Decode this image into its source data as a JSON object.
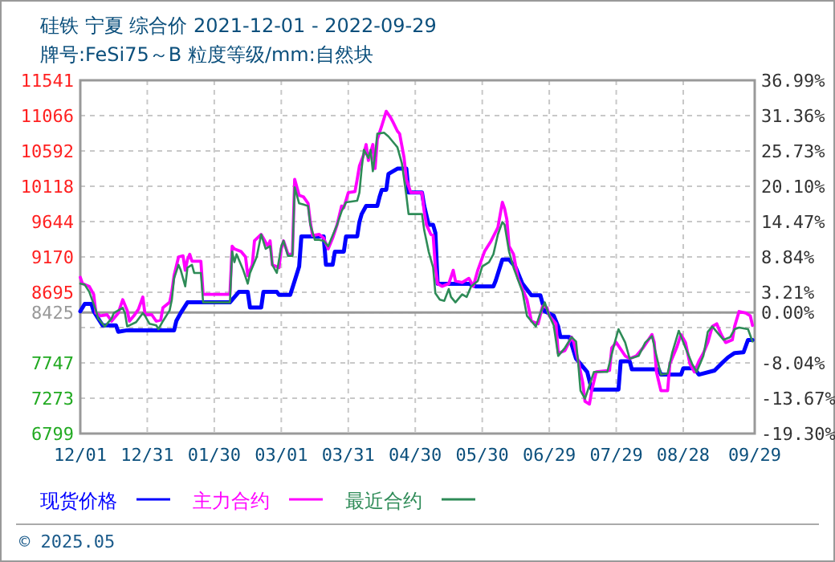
{
  "chart_data": {
    "type": "line",
    "title": "硅铁 宁夏 综合价 2021-12-01 - 2022-09-29",
    "subtitle": "牌号:FeSi75～B 粒度等级/mm:自然块",
    "xlim": [
      "2021-12-01",
      "2022-09-29"
    ],
    "xticks": [
      {
        "value": "2021-12-01",
        "label": "12/01"
      },
      {
        "value": "2021-12-31",
        "label": "12/31"
      },
      {
        "value": "2022-01-30",
        "label": "01/30"
      },
      {
        "value": "2022-03-01",
        "label": "03/01"
      },
      {
        "value": "2022-03-31",
        "label": "03/31"
      },
      {
        "value": "2022-04-30",
        "label": "04/30"
      },
      {
        "value": "2022-05-30",
        "label": "05/30"
      },
      {
        "value": "2022-06-29",
        "label": "06/29"
      },
      {
        "value": "2022-07-29",
        "label": "07/29"
      },
      {
        "value": "2022-08-28",
        "label": "08/28"
      },
      {
        "value": "2022-09-29",
        "label": "09/29"
      }
    ],
    "ylim": [
      6799,
      11541
    ],
    "yticks": [
      6799,
      7273,
      7747,
      {
        "value": 8221,
        "label": null
      },
      8695,
      9170,
      9644,
      10118,
      10592,
      11066,
      11541
    ],
    "y2lim": [
      -19.3,
      36.99
    ],
    "y2ticks": [
      {
        "value": -19.3,
        "label": "-19.30%"
      },
      {
        "value": -13.67,
        "label": "-13.67%"
      },
      {
        "value": -8.04,
        "label": "-8.04%"
      },
      {
        "value": -2.42,
        "label": null
      },
      {
        "value": 0,
        "label": "0.00%"
      },
      {
        "value": 3.21,
        "label": "3.21%"
      },
      {
        "value": 8.84,
        "label": "8.84%"
      },
      {
        "value": 14.47,
        "label": "14.47%"
      },
      {
        "value": 20.1,
        "label": "20.10%"
      },
      {
        "value": 25.73,
        "label": "25.73%"
      },
      {
        "value": 31.36,
        "label": "31.36%"
      },
      {
        "value": 36.99,
        "label": "36.99%"
      }
    ],
    "ref_lines": [
      {
        "axis": "y",
        "value": 8425,
        "label": "8425",
        "color": "#999999"
      }
    ],
    "grid": true,
    "legend": "bottom",
    "line_style": "solid",
    "marker": "none",
    "annotations": [
      "© 2025.05"
    ],
    "series": [
      {
        "name": "现货价格",
        "color": "#0000ff",
        "x": [
          "2021-12-01",
          "2021-12-03",
          "2021-12-06",
          "2021-12-07",
          "2021-12-09",
          "2021-12-11",
          "2021-12-17",
          "2021-12-18",
          "2021-12-22",
          "2022-01-12",
          "2022-01-13",
          "2022-01-15",
          "2022-01-18",
          "2022-02-06",
          "2022-02-08",
          "2022-02-10",
          "2022-02-14",
          "2022-02-15",
          "2022-02-20",
          "2022-02-21",
          "2022-02-27",
          "2022-02-28",
          "2022-03-05",
          "2022-03-07",
          "2022-03-09",
          "2022-03-10",
          "2022-03-20",
          "2022-03-21",
          "2022-03-24",
          "2022-03-25",
          "2022-03-29",
          "2022-03-30",
          "2022-04-04",
          "2022-04-05",
          "2022-04-06",
          "2022-04-08",
          "2022-04-13",
          "2022-04-14",
          "2022-04-15",
          "2022-04-17",
          "2022-04-18",
          "2022-04-22",
          "2022-04-26",
          "2022-04-27",
          "2022-05-03",
          "2022-05-04",
          "2022-05-06",
          "2022-05-08",
          "2022-05-09",
          "2022-05-10",
          "2022-05-24",
          "2022-05-27",
          "2022-06-04",
          "2022-06-05",
          "2022-06-08",
          "2022-06-11",
          "2022-06-14",
          "2022-06-17",
          "2022-06-21",
          "2022-06-25",
          "2022-06-27",
          "2022-07-01",
          "2022-07-03",
          "2022-07-04",
          "2022-07-08",
          "2022-07-11",
          "2022-07-16",
          "2022-07-18",
          "2022-07-30",
          "2022-07-31",
          "2022-08-04",
          "2022-08-05",
          "2022-08-17",
          "2022-08-18",
          "2022-08-27",
          "2022-08-28",
          "2022-09-02",
          "2022-09-04",
          "2022-09-11",
          "2022-09-14",
          "2022-09-17",
          "2022-09-20",
          "2022-09-24",
          "2022-09-26",
          "2022-09-28"
        ],
        "values": [
          8440,
          8540,
          8540,
          8440,
          8345,
          8250,
          8250,
          8165,
          8185,
          8185,
          8310,
          8420,
          8560,
          8560,
          8630,
          8700,
          8700,
          8490,
          8490,
          8700,
          8700,
          8660,
          8660,
          8850,
          9040,
          9445,
          9445,
          9065,
          9065,
          9240,
          9240,
          9445,
          9445,
          9640,
          9745,
          9855,
          9855,
          9975,
          10070,
          10070,
          10285,
          10355,
          10355,
          10035,
          10035,
          9855,
          9600,
          9600,
          9495,
          8810,
          8810,
          8775,
          8775,
          8850,
          9135,
          9135,
          9027,
          8810,
          8655,
          8655,
          8440,
          8380,
          8235,
          8095,
          8095,
          7805,
          7625,
          7390,
          7390,
          7770,
          7770,
          7660,
          7660,
          7590,
          7590,
          7675,
          7675,
          7590,
          7645,
          7735,
          7820,
          7880,
          7890,
          8055,
          8055
        ]
      },
      {
        "name": "主力合约",
        "color": "#ff00ff",
        "x": [
          "2021-12-01",
          "2021-12-02",
          "2021-12-05",
          "2021-12-07",
          "2021-12-08",
          "2021-12-10",
          "2021-12-13",
          "2021-12-15",
          "2021-12-18",
          "2021-12-20",
          "2021-12-22",
          "2021-12-23",
          "2021-12-25",
          "2021-12-27",
          "2021-12-29",
          "2021-12-30",
          "2022-01-02",
          "2022-01-04",
          "2022-01-06",
          "2022-01-07",
          "2022-01-10",
          "2022-01-11",
          "2022-01-12",
          "2022-01-14",
          "2022-01-16",
          "2022-01-17",
          "2022-01-18",
          "2022-01-19",
          "2022-01-20",
          "2022-01-24",
          "2022-01-25",
          "2022-02-06",
          "2022-02-07",
          "2022-02-08",
          "2022-02-11",
          "2022-02-13",
          "2022-02-14",
          "2022-02-16",
          "2022-02-17",
          "2022-02-20",
          "2022-02-23",
          "2022-02-24",
          "2022-02-25",
          "2022-02-28",
          "2022-03-01",
          "2022-03-02",
          "2022-03-04",
          "2022-03-06",
          "2022-03-07",
          "2022-03-09",
          "2022-03-11",
          "2022-03-13",
          "2022-03-14",
          "2022-03-15",
          "2022-03-18",
          "2022-03-20",
          "2022-03-22",
          "2022-03-24",
          "2022-03-26",
          "2022-03-28",
          "2022-03-29",
          "2022-03-31",
          "2022-04-03",
          "2022-04-04",
          "2022-04-05",
          "2022-04-07",
          "2022-04-08",
          "2022-04-09",
          "2022-04-11",
          "2022-04-12",
          "2022-04-13",
          "2022-04-15",
          "2022-04-17",
          "2022-04-19",
          "2022-04-20",
          "2022-04-22",
          "2022-04-23",
          "2022-04-25",
          "2022-04-26",
          "2022-04-28",
          "2022-05-03",
          "2022-05-04",
          "2022-05-05",
          "2022-05-07",
          "2022-05-08",
          "2022-05-09",
          "2022-05-10",
          "2022-05-12",
          "2022-05-15",
          "2022-05-17",
          "2022-05-18",
          "2022-05-21",
          "2022-05-24",
          "2022-05-26",
          "2022-05-28",
          "2022-05-31",
          "2022-06-03",
          "2022-06-06",
          "2022-06-08",
          "2022-06-09",
          "2022-06-10",
          "2022-06-11",
          "2022-06-13",
          "2022-06-15",
          "2022-06-17",
          "2022-06-19",
          "2022-06-21",
          "2022-06-24",
          "2022-06-26",
          "2022-06-28",
          "2022-06-29",
          "2022-07-02",
          "2022-07-03",
          "2022-07-06",
          "2022-07-09",
          "2022-07-10",
          "2022-07-12",
          "2022-07-14",
          "2022-07-15",
          "2022-07-17",
          "2022-07-18",
          "2022-07-20",
          "2022-07-26",
          "2022-07-27",
          "2022-07-29",
          "2022-08-02",
          "2022-08-04",
          "2022-08-07",
          "2022-08-10",
          "2022-08-14",
          "2022-08-15",
          "2022-08-16",
          "2022-08-18",
          "2022-08-21",
          "2022-08-22",
          "2022-08-25",
          "2022-08-27",
          "2022-08-29",
          "2022-08-31",
          "2022-09-02",
          "2022-09-04",
          "2022-09-06",
          "2022-09-08",
          "2022-09-10",
          "2022-09-12",
          "2022-09-14",
          "2022-09-16",
          "2022-09-19",
          "2022-09-20",
          "2022-09-22",
          "2022-09-25",
          "2022-09-27",
          "2022-09-28"
        ],
        "values": [
          8897,
          8811,
          8775,
          8667,
          8416,
          8380,
          8394,
          8308,
          8416,
          8596,
          8452,
          8308,
          8380,
          8466,
          8632,
          8394,
          8394,
          8308,
          8323,
          8488,
          8560,
          8703,
          8919,
          9170,
          9185,
          8991,
          9135,
          9206,
          9113,
          9113,
          8667,
          8667,
          9314,
          9278,
          9242,
          9170,
          8919,
          9063,
          9386,
          9472,
          9314,
          9386,
          9063,
          9027,
          9278,
          9386,
          9206,
          9206,
          10212,
          9997,
          9975,
          9889,
          9637,
          9458,
          9472,
          9422,
          9278,
          9422,
          9602,
          9853,
          9831,
          10033,
          10047,
          10212,
          10392,
          10550,
          10679,
          10464,
          10679,
          10356,
          10751,
          10931,
          11125,
          11039,
          10981,
          10859,
          10823,
          10500,
          10212,
          10033,
          10033,
          9781,
          9602,
          9472,
          9458,
          9027,
          8811,
          8775,
          8811,
          8991,
          8847,
          8826,
          8883,
          8775,
          8991,
          9242,
          9386,
          9566,
          9903,
          9817,
          9674,
          9314,
          9206,
          8883,
          8739,
          8596,
          8308,
          8272,
          8509,
          8488,
          8380,
          8272,
          7877,
          7913,
          8093,
          8021,
          7769,
          7482,
          7231,
          7195,
          7374,
          7626,
          7647,
          7949,
          8021,
          7841,
          7805,
          7841,
          7949,
          8128,
          8021,
          7626,
          7374,
          7374,
          7733,
          7949,
          8128,
          8021,
          7733,
          7626,
          7769,
          7877,
          8021,
          8236,
          8272,
          8128,
          8021,
          8057,
          8236,
          8437,
          8416,
          8380,
          8251
        ]
      },
      {
        "name": "最近合约",
        "color": "#2e8b57",
        "x": [
          "2021-12-01",
          "2021-12-03",
          "2021-12-05",
          "2021-12-08",
          "2021-12-09",
          "2021-12-12",
          "2021-12-15",
          "2021-12-16",
          "2021-12-20",
          "2021-12-21",
          "2021-12-22",
          "2021-12-26",
          "2021-12-29",
          "2021-12-30",
          "2022-01-01",
          "2022-01-04",
          "2022-01-05",
          "2022-01-07",
          "2022-01-10",
          "2022-01-11",
          "2022-01-12",
          "2022-01-14",
          "2022-01-15",
          "2022-01-17",
          "2022-01-18",
          "2022-01-20",
          "2022-01-21",
          "2022-01-24",
          "2022-01-25",
          "2022-02-06",
          "2022-02-07",
          "2022-02-08",
          "2022-02-09",
          "2022-02-12",
          "2022-02-14",
          "2022-02-15",
          "2022-02-18",
          "2022-02-20",
          "2022-02-22",
          "2022-02-24",
          "2022-02-25",
          "2022-02-27",
          "2022-03-01",
          "2022-03-02",
          "2022-03-04",
          "2022-03-06",
          "2022-03-07",
          "2022-03-09",
          "2022-03-11",
          "2022-03-13",
          "2022-03-14",
          "2022-03-16",
          "2022-03-18",
          "2022-03-20",
          "2022-03-22",
          "2022-03-24",
          "2022-03-26",
          "2022-03-28",
          "2022-03-30",
          "2022-04-04",
          "2022-04-05",
          "2022-04-06",
          "2022-04-07",
          "2022-04-09",
          "2022-04-10",
          "2022-04-11",
          "2022-04-12",
          "2022-04-13",
          "2022-04-16",
          "2022-04-18",
          "2022-04-21",
          "2022-04-22",
          "2022-04-24",
          "2022-04-26",
          "2022-04-27",
          "2022-05-03",
          "2022-05-04",
          "2022-05-06",
          "2022-05-08",
          "2022-05-09",
          "2022-05-11",
          "2022-05-13",
          "2022-05-15",
          "2022-05-16",
          "2022-05-18",
          "2022-05-21",
          "2022-05-23",
          "2022-05-25",
          "2022-05-28",
          "2022-05-30",
          "2022-06-02",
          "2022-06-04",
          "2022-06-06",
          "2022-06-08",
          "2022-06-09",
          "2022-06-11",
          "2022-06-13",
          "2022-06-17",
          "2022-06-19",
          "2022-06-21",
          "2022-06-23",
          "2022-06-25",
          "2022-06-27",
          "2022-06-29",
          "2022-07-01",
          "2022-07-03",
          "2022-07-06",
          "2022-07-09",
          "2022-07-11",
          "2022-07-12",
          "2022-07-13",
          "2022-07-15",
          "2022-07-17",
          "2022-07-19",
          "2022-07-25",
          "2022-07-28",
          "2022-07-30",
          "2022-08-02",
          "2022-08-04",
          "2022-08-08",
          "2022-08-11",
          "2022-08-14",
          "2022-08-16",
          "2022-08-18",
          "2022-08-21",
          "2022-08-23",
          "2022-08-26",
          "2022-08-29",
          "2022-09-01",
          "2022-09-03",
          "2022-09-06",
          "2022-09-08",
          "2022-09-10",
          "2022-09-13",
          "2022-09-15",
          "2022-09-18",
          "2022-09-20",
          "2022-09-22",
          "2022-09-26",
          "2022-09-28"
        ],
        "values": [
          8811,
          8797,
          8703,
          8452,
          8344,
          8236,
          8344,
          8416,
          8488,
          8416,
          8236,
          8294,
          8416,
          8380,
          8272,
          8251,
          8200,
          8308,
          8452,
          8596,
          8883,
          9063,
          8991,
          8775,
          9027,
          9063,
          8955,
          8955,
          8560,
          8560,
          9242,
          9099,
          9206,
          8991,
          8811,
          8955,
          9170,
          9472,
          9278,
          9314,
          9063,
          8955,
          9314,
          9386,
          9185,
          9185,
          10104,
          9889,
          9874,
          9853,
          9602,
          9400,
          9400,
          9386,
          9314,
          9458,
          9602,
          9781,
          9903,
          9925,
          10033,
          10356,
          10608,
          10500,
          10608,
          10320,
          10536,
          10823,
          10837,
          10787,
          10679,
          10643,
          10428,
          9997,
          9745,
          9745,
          9530,
          9242,
          9027,
          8682,
          8596,
          8581,
          8739,
          8632,
          8560,
          8667,
          8632,
          8775,
          8847,
          9041,
          9099,
          9206,
          9472,
          9637,
          9602,
          9242,
          9027,
          8703,
          8380,
          8308,
          8236,
          8416,
          8560,
          8380,
          8251,
          7841,
          7949,
          8093,
          8035,
          7733,
          7374,
          7266,
          7446,
          7626,
          7626,
          7985,
          8200,
          8021,
          7805,
          7841,
          8021,
          8107,
          7841,
          7590,
          7604,
          7877,
          8179,
          7949,
          7733,
          7626,
          7841,
          8164,
          8236,
          8128,
          8057,
          8093,
          8200,
          8222,
          8200,
          8035
        ]
      }
    ]
  }
}
